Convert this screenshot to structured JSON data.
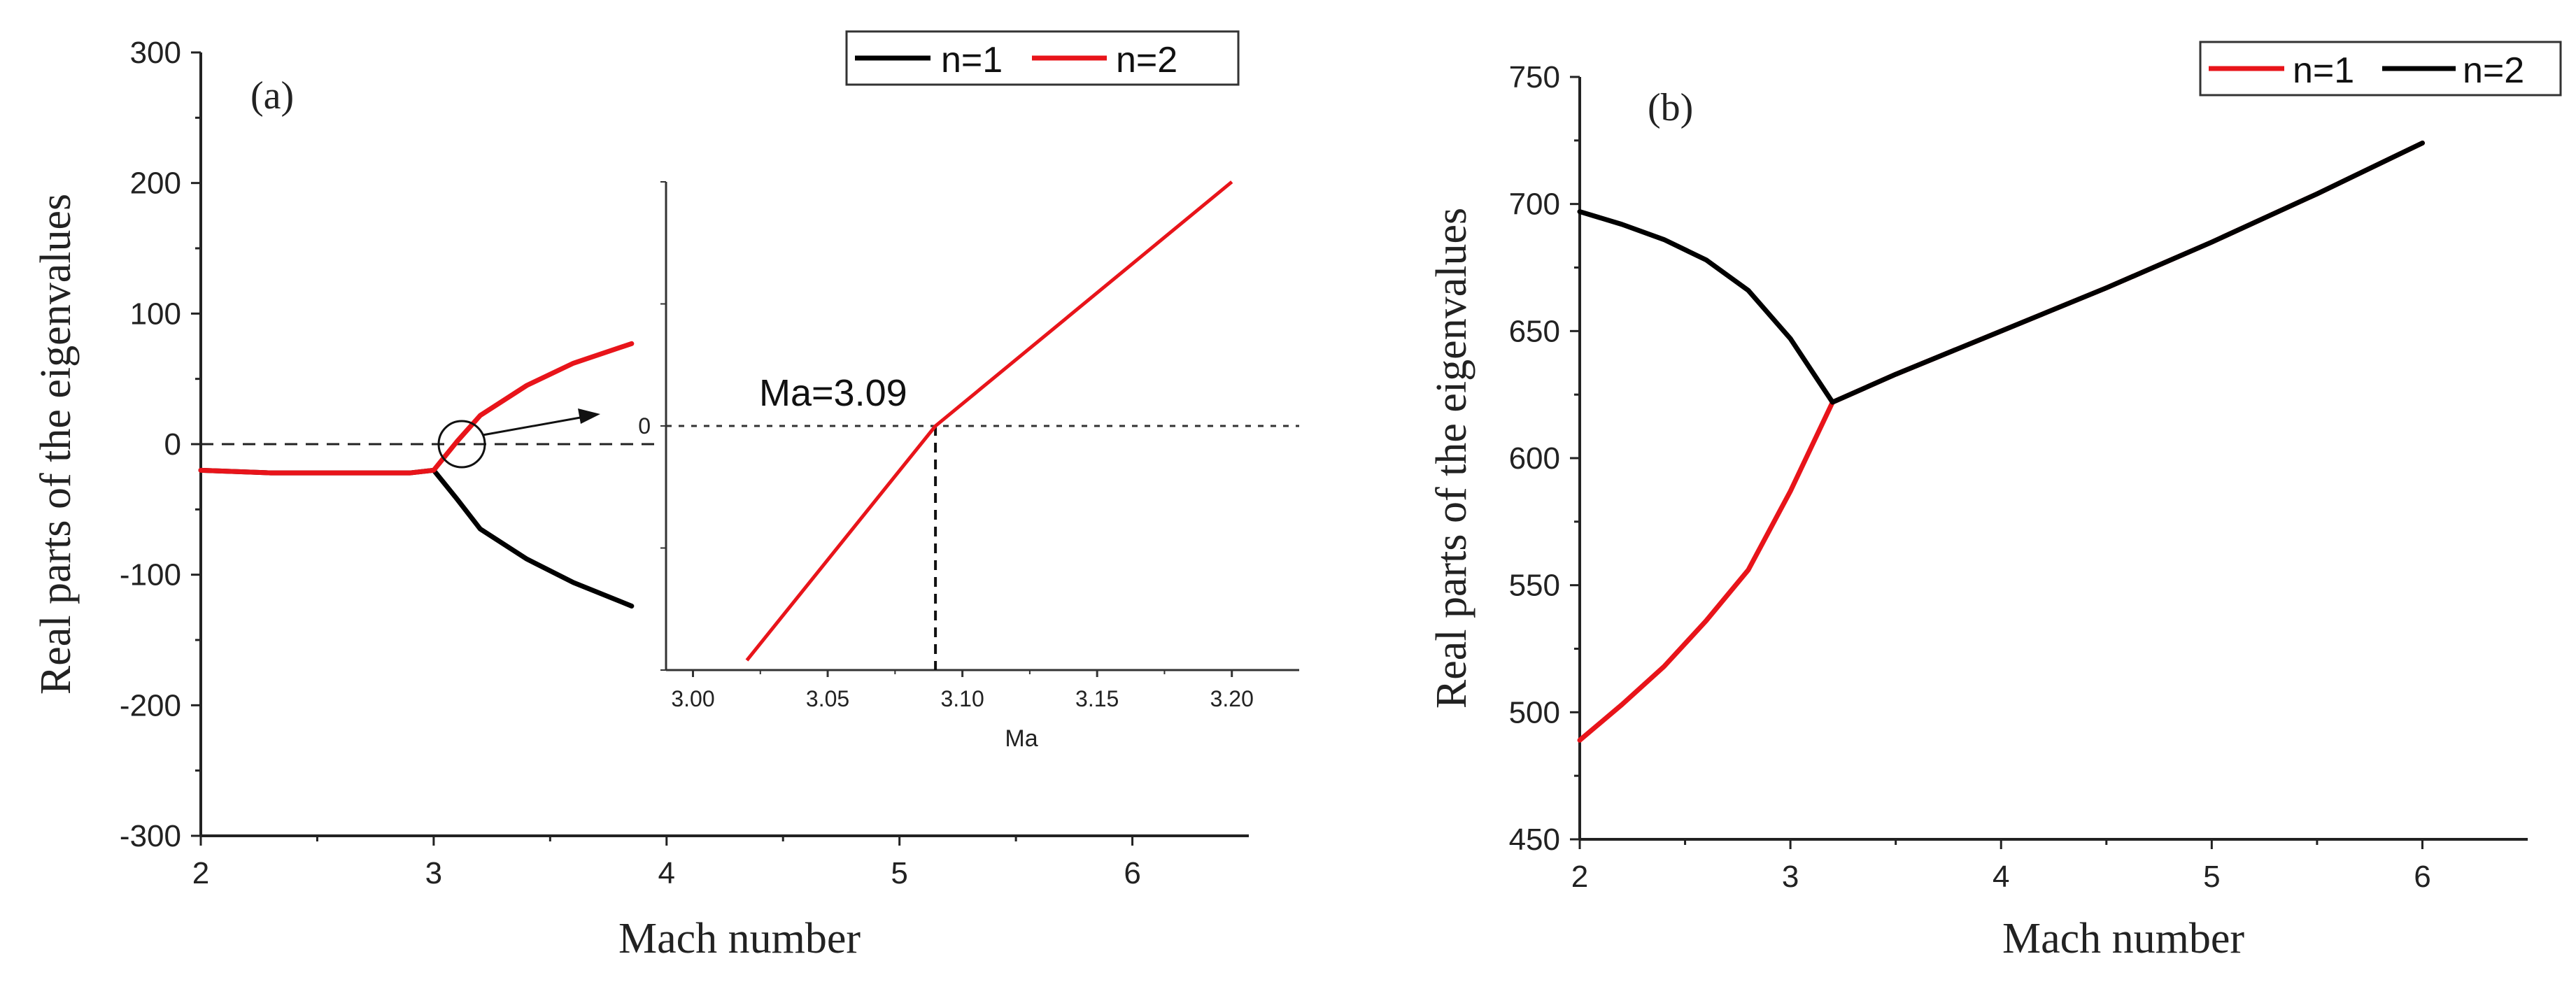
{
  "chart_data": [
    {
      "id": "a",
      "type": "line",
      "panel_label": "(a)",
      "xlabel": "Mach number",
      "ylabel": "Real parts of the eigenvalues",
      "xlim": [
        2,
        6.5
      ],
      "ylim": [
        -300,
        300
      ],
      "xticks": [
        2,
        3,
        4,
        5,
        6
      ],
      "yticks": [
        -300,
        -200,
        -100,
        0,
        100,
        200,
        300
      ],
      "legend": {
        "position": "top-right"
      },
      "reference_line_y": 0,
      "series": [
        {
          "name": "n=1",
          "color": "#000000",
          "x": [
            2,
            2.3,
            2.6,
            2.9,
            3.0,
            3.1,
            3.2,
            3.4,
            3.6,
            3.85
          ],
          "y": [
            -20,
            -22,
            -22,
            -22,
            -20,
            -42,
            -65,
            -88,
            -106,
            -124
          ]
        },
        {
          "name": "n=2",
          "color": "#e8141a",
          "x": [
            2,
            2.3,
            2.6,
            2.9,
            3.0,
            3.1,
            3.2,
            3.4,
            3.6,
            3.85
          ],
          "y": [
            -20,
            -22,
            -22,
            -22,
            -20,
            2,
            22,
            45,
            62,
            77
          ]
        }
      ],
      "inset": {
        "xlabel": "Ma",
        "xlim": [
          2.99,
          3.225
        ],
        "ylim": [
          -1,
          1
        ],
        "xticks": [
          3.0,
          3.05,
          3.1,
          3.15,
          3.2
        ],
        "xtick_labels": [
          "3.00",
          "3.05",
          "3.10",
          "3.15",
          "3.20"
        ],
        "yticks": [
          0
        ],
        "ytick_labels": [
          "0"
        ],
        "annotation": "Ma=3.09",
        "marker_x": 3.09,
        "series": [
          {
            "name": "n=2",
            "color": "#e8141a",
            "x": [
              3.02,
              3.09,
              3.2
            ],
            "y": [
              -0.96,
              0,
              1.0
            ]
          }
        ]
      }
    },
    {
      "id": "b",
      "type": "line",
      "panel_label": "(b)",
      "xlabel": "Mach number",
      "ylabel": "Real parts of the eigenvalues",
      "xlim": [
        2,
        6.5
      ],
      "ylim": [
        450,
        750
      ],
      "xticks": [
        2,
        3,
        4,
        5,
        6
      ],
      "yticks": [
        450,
        500,
        550,
        600,
        650,
        700,
        750
      ],
      "legend": {
        "position": "top-right"
      },
      "series": [
        {
          "name": "n=1",
          "color": "#e8141a",
          "x": [
            2,
            2.2,
            2.4,
            2.6,
            2.8,
            3.0,
            3.2,
            3.5,
            4.0,
            4.5,
            5.0,
            5.5,
            6.0
          ],
          "y": [
            489,
            503,
            518,
            536,
            556,
            587,
            622,
            633,
            650,
            667,
            685,
            704,
            724
          ]
        },
        {
          "name": "n=2",
          "color": "#000000",
          "x": [
            2,
            2.2,
            2.4,
            2.6,
            2.8,
            3.0,
            3.2,
            3.5,
            4.0,
            4.5,
            5.0,
            5.5,
            6.0
          ],
          "y": [
            697,
            692,
            686,
            678,
            666,
            647,
            622,
            633,
            650,
            667,
            685,
            704,
            724
          ]
        }
      ]
    }
  ]
}
